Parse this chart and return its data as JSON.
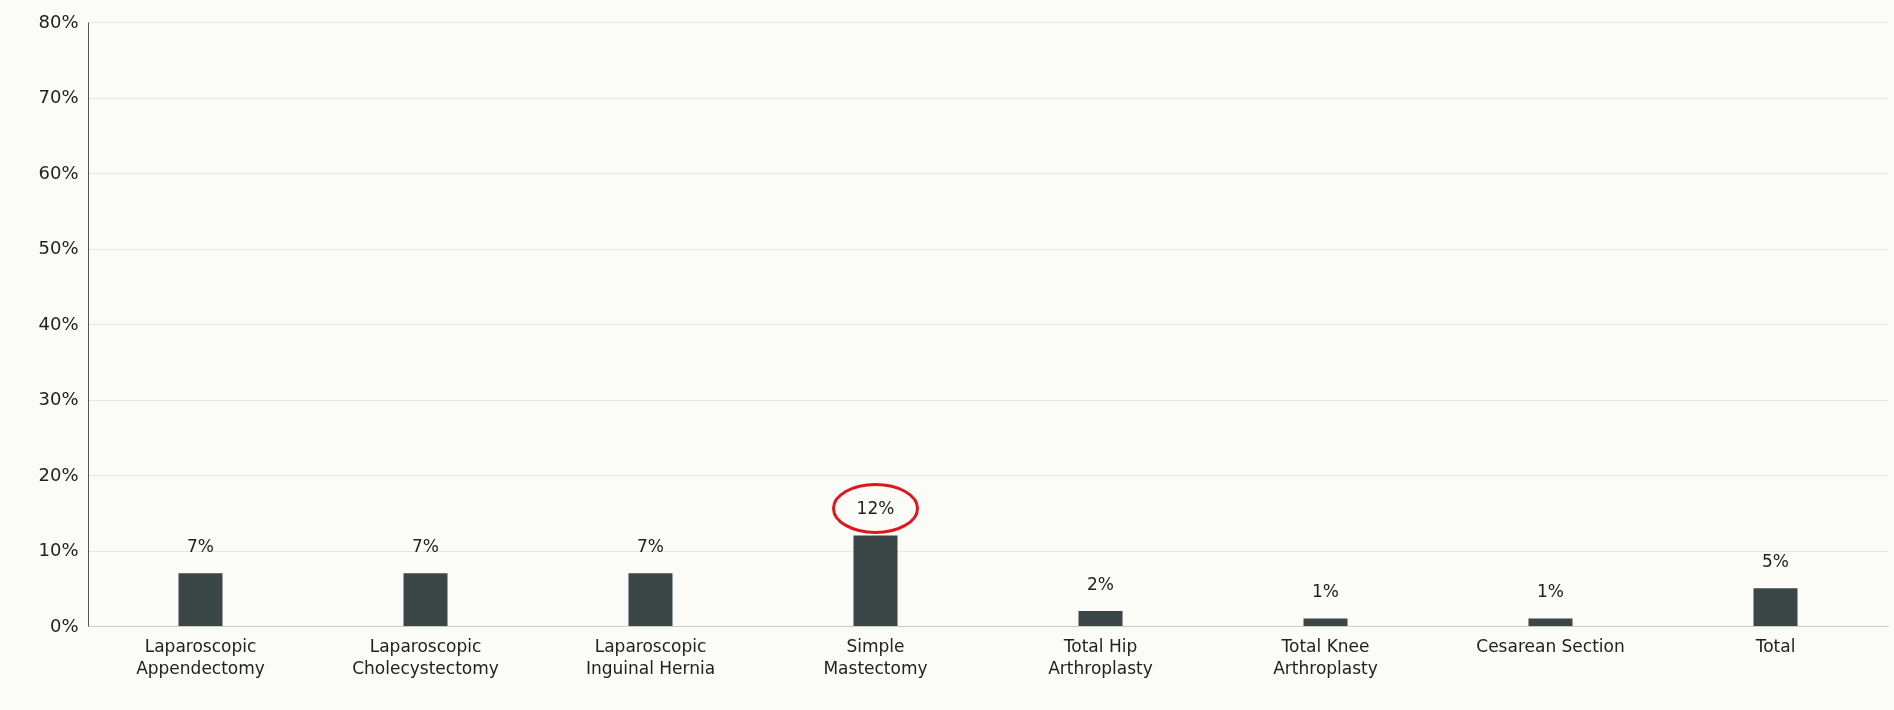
{
  "chart_data": {
    "type": "bar",
    "categories": [
      "Laparoscopic Appendectomy",
      "Laparoscopic Cholecystectomy",
      "Laparoscopic Inguinal Hernia",
      "Simple Mastectomy",
      "Total Hip Arthroplasty",
      "Total Knee Arthroplasty",
      "Cesarean Section",
      "Total"
    ],
    "values": [
      7,
      7,
      7,
      12,
      2,
      1,
      1,
      5
    ],
    "color": "#3b4646",
    "ylim": [
      0,
      80
    ],
    "yticks": [
      {
        "value": 0,
        "label": "0%"
      },
      {
        "value": 10,
        "label": "10%"
      },
      {
        "value": 20,
        "label": "20%"
      },
      {
        "value": 30,
        "label": "30%"
      },
      {
        "value": 40,
        "label": "40%"
      },
      {
        "value": 50,
        "label": "50%"
      },
      {
        "value": 60,
        "label": "60%"
      },
      {
        "value": 70,
        "label": "70%"
      },
      {
        "value": 80,
        "label": "80%"
      }
    ],
    "value_labels": [
      "7%",
      "7%",
      "7%",
      "12%",
      "2%",
      "1%",
      "1%",
      "5%"
    ],
    "grid": "y"
  }
}
